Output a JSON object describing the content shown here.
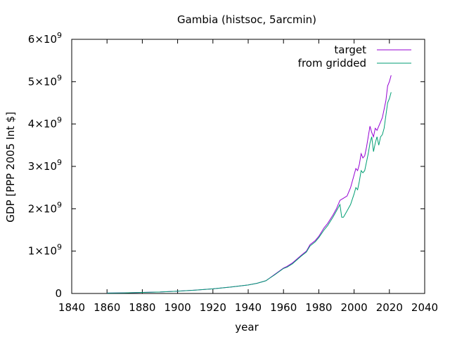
{
  "chart_data": {
    "type": "line",
    "title": "Gambia (histsoc, 5arcmin)",
    "xlabel": "year",
    "ylabel": "GDP [PPP 2005 Int $]",
    "xlim": [
      1840,
      2040
    ],
    "ylim": [
      0,
      6000000000
    ],
    "xticks": [
      1840,
      1860,
      1880,
      1900,
      1920,
      1940,
      1960,
      1980,
      2000,
      2020,
      2040
    ],
    "x_tick_labels": [
      "1840",
      "1860",
      "1880",
      "1900",
      "1920",
      "1940",
      "1960",
      "1980",
      "2000",
      "2020",
      "2040"
    ],
    "yticks": [
      0,
      1000000000,
      2000000000,
      3000000000,
      4000000000,
      5000000000,
      6000000000
    ],
    "y_tick_labels": [
      {
        "mantissa": "0",
        "exp": ""
      },
      {
        "mantissa": "1×10",
        "exp": "9"
      },
      {
        "mantissa": "2×10",
        "exp": "9"
      },
      {
        "mantissa": "3×10",
        "exp": "9"
      },
      {
        "mantissa": "4×10",
        "exp": "9"
      },
      {
        "mantissa": "5×10",
        "exp": "9"
      },
      {
        "mantissa": "6×10",
        "exp": "9"
      }
    ],
    "grid": false,
    "legend_position": "top-right",
    "series": [
      {
        "name": "target",
        "color": "#9400d3",
        "x": [
          1860,
          1870,
          1880,
          1890,
          1900,
          1910,
          1920,
          1930,
          1940,
          1945,
          1950,
          1955,
          1960,
          1962,
          1965,
          1970,
          1973,
          1975,
          1978,
          1980,
          1983,
          1985,
          1988,
          1990,
          1992,
          1994,
          1996,
          1998,
          2000,
          2001,
          2002,
          2003,
          2004,
          2005,
          2006,
          2007,
          2008,
          2009,
          2010,
          2011,
          2012,
          2013,
          2014,
          2015,
          2016,
          2017,
          2018,
          2019,
          2020,
          2021
        ],
        "y": [
          10000000,
          15000000,
          25000000,
          35000000,
          55000000,
          80000000,
          110000000,
          150000000,
          200000000,
          240000000,
          300000000,
          450000000,
          600000000,
          640000000,
          720000000,
          900000000,
          1000000000,
          1150000000,
          1250000000,
          1350000000,
          1550000000,
          1650000000,
          1850000000,
          2000000000,
          2200000000,
          2250000000,
          2300000000,
          2500000000,
          2800000000,
          2950000000,
          2900000000,
          3050000000,
          3300000000,
          3200000000,
          3250000000,
          3450000000,
          3700000000,
          3950000000,
          3800000000,
          3700000000,
          3900000000,
          3850000000,
          3950000000,
          4050000000,
          4150000000,
          4350000000,
          4550000000,
          4900000000,
          5000000000,
          5150000000
        ]
      },
      {
        "name": "from gridded",
        "color": "#009e73",
        "x": [
          1860,
          1870,
          1880,
          1890,
          1900,
          1910,
          1920,
          1930,
          1940,
          1945,
          1950,
          1955,
          1960,
          1962,
          1965,
          1970,
          1973,
          1975,
          1978,
          1980,
          1983,
          1985,
          1988,
          1990,
          1992,
          1993,
          1994,
          1996,
          1998,
          2000,
          2001,
          2002,
          2003,
          2004,
          2005,
          2006,
          2007,
          2008,
          2009,
          2010,
          2011,
          2012,
          2013,
          2014,
          2015,
          2016,
          2017,
          2018,
          2019,
          2020,
          2021
        ],
        "y": [
          10000000,
          15000000,
          25000000,
          35000000,
          55000000,
          80000000,
          110000000,
          150000000,
          200000000,
          240000000,
          300000000,
          440000000,
          590000000,
          620000000,
          700000000,
          880000000,
          980000000,
          1120000000,
          1220000000,
          1320000000,
          1500000000,
          1600000000,
          1800000000,
          1950000000,
          2100000000,
          1800000000,
          1800000000,
          1950000000,
          2100000000,
          2350000000,
          2500000000,
          2450000000,
          2650000000,
          2900000000,
          2850000000,
          2900000000,
          3100000000,
          3300000000,
          3550000000,
          3700000000,
          3350000000,
          3550000000,
          3700000000,
          3500000000,
          3700000000,
          3750000000,
          3900000000,
          4200000000,
          4500000000,
          4600000000,
          4750000000
        ]
      }
    ]
  }
}
